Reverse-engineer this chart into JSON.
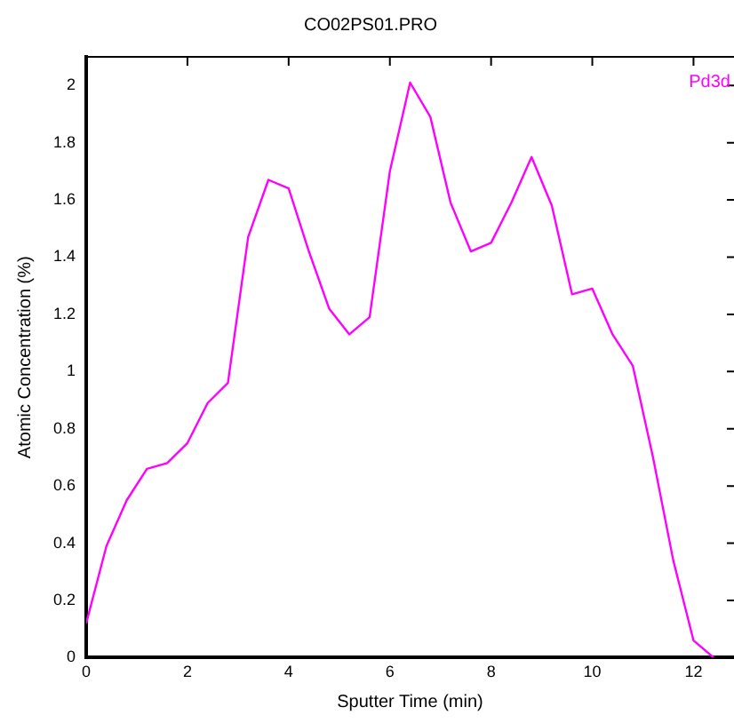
{
  "chart_data": {
    "type": "line",
    "title": "CO02PS01.PRO",
    "xlabel": "Sputter Time (min)",
    "ylabel": "Atomic Concentration (%)",
    "x": [
      0,
      0.4,
      0.8,
      1.2,
      1.6,
      2.0,
      2.4,
      2.8,
      3.2,
      3.6,
      4.0,
      4.4,
      4.8,
      5.2,
      5.6,
      6.0,
      6.4,
      6.8,
      7.2,
      7.6,
      8.0,
      8.4,
      8.8,
      9.2,
      9.6,
      10.0,
      10.4,
      10.8,
      11.2,
      11.6,
      12.0,
      12.4
    ],
    "series": [
      {
        "name": "Pd3d",
        "color": "#ff00ff",
        "values": [
          0.12,
          0.39,
          0.55,
          0.66,
          0.68,
          0.75,
          0.89,
          0.96,
          1.47,
          1.67,
          1.64,
          1.42,
          1.22,
          1.13,
          1.19,
          1.7,
          2.01,
          1.89,
          1.59,
          1.42,
          1.45,
          1.59,
          1.75,
          1.58,
          1.27,
          1.29,
          1.13,
          1.02,
          0.7,
          0.34,
          0.06,
          0
        ]
      }
    ],
    "xlim": [
      0,
      12.8
    ],
    "xticks": [
      0,
      2,
      4,
      6,
      8,
      10,
      12
    ],
    "ylim": [
      0,
      2.1
    ],
    "yticks": [
      0,
      0.2,
      0.4,
      0.6,
      0.8,
      1,
      1.2,
      1.4,
      1.6,
      1.8,
      2
    ],
    "grid": false,
    "legend": "top right",
    "marker": "none",
    "line_style": "solid"
  }
}
